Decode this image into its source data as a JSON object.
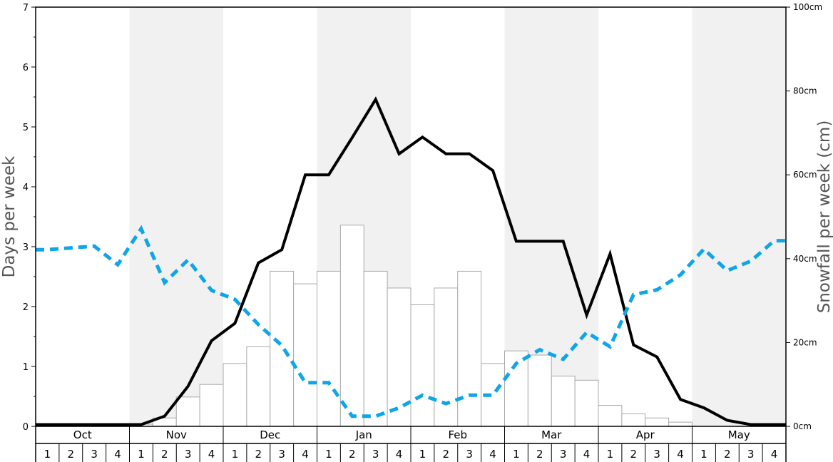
{
  "chart_data": {
    "type": "bar",
    "ylabel": "Days per week",
    "y2label": "Snowfall per week (cm)",
    "ylim": [
      0,
      7
    ],
    "y_ticks": [
      "0",
      "1",
      "2",
      "3",
      "4",
      "5",
      "6",
      "7"
    ],
    "y2lim": [
      0,
      100
    ],
    "y2_ticks": [
      "0cm",
      "20cm",
      "40cm",
      "60cm",
      "80cm",
      "100cm"
    ],
    "months": [
      "Oct",
      "Nov",
      "Dec",
      "Jan",
      "Feb",
      "Mar",
      "Apr",
      "May"
    ],
    "weeks": [
      "1",
      "2",
      "3",
      "4"
    ],
    "shaded_months": [
      "Nov",
      "Jan",
      "Mar",
      "May"
    ],
    "colors": {
      "bar_fill": "#ffffff",
      "bar_stroke": "#aaaaaa",
      "line_solid": "#000000",
      "line_dashed": "#0ea5e9",
      "shade": "#f1f1f1"
    },
    "snowfall_bars_cm": [
      0,
      0,
      0,
      0,
      0.5,
      2,
      7,
      10,
      15,
      19,
      37,
      34,
      37,
      48,
      37,
      33,
      29,
      33,
      37,
      15,
      18,
      17,
      12,
      11,
      5,
      3,
      2,
      1,
      0,
      0,
      0,
      0
    ],
    "series": [
      {
        "style": "solid",
        "axis": "left",
        "values": [
          0.03,
          0.03,
          0.03,
          0.03,
          0.03,
          0.17,
          0.67,
          1.43,
          1.72,
          2.73,
          2.95,
          4.2,
          4.2,
          4.82,
          5.46,
          4.55,
          4.83,
          4.55,
          4.55,
          4.27,
          3.09,
          3.09,
          3.09,
          1.86,
          2.88,
          1.36,
          1.16,
          0.45,
          0.31,
          0.1,
          0.03,
          0.03
        ]
      },
      {
        "style": "dashed",
        "axis": "left",
        "values": [
          2.95,
          2.98,
          3.01,
          2.7,
          3.3,
          2.4,
          2.78,
          2.27,
          2.12,
          1.7,
          1.35,
          0.73,
          0.73,
          0.17,
          0.17,
          0.31,
          0.52,
          0.38,
          0.52,
          0.52,
          1.05,
          1.28,
          1.12,
          1.57,
          1.33,
          2.2,
          2.28,
          2.53,
          2.96,
          2.6,
          2.76,
          3.1
        ]
      }
    ]
  }
}
